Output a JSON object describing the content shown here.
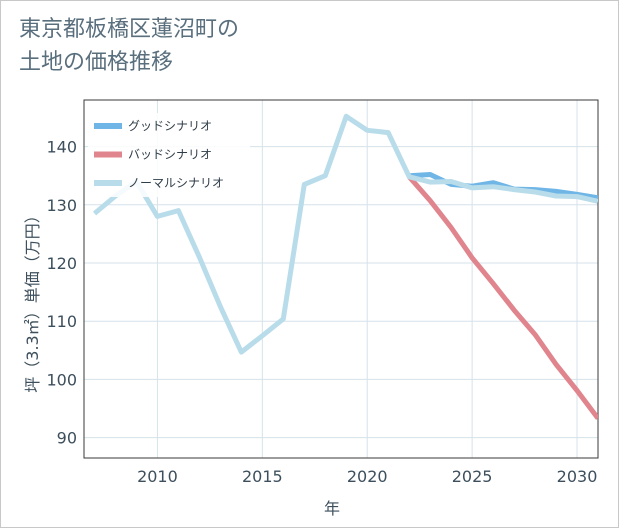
{
  "title": "東京都板橋区蓮沼町の\n土地の価格推移",
  "chart_data": {
    "type": "line",
    "title": "東京都板橋区蓮沼町の土地の価格推移",
    "xlabel": "年",
    "ylabel": "坪（3.3㎡）単価（万円）",
    "xlim": [
      2006.5,
      2031
    ],
    "ylim": [
      86.5,
      148
    ],
    "x_ticks": [
      2010,
      2015,
      2020,
      2025,
      2030
    ],
    "y_ticks": [
      90,
      100,
      110,
      120,
      130,
      140
    ],
    "grid": true,
    "legend_position": "top-left",
    "series": [
      {
        "name": "グッドシナリオ",
        "color": "#6fb6e6",
        "points": [
          [
            2022,
            135
          ],
          [
            2023,
            135.2
          ],
          [
            2024,
            133.5
          ],
          [
            2025,
            133.2
          ],
          [
            2026,
            133.8
          ],
          [
            2027,
            132.7
          ],
          [
            2028,
            132.6
          ],
          [
            2029,
            132.3
          ],
          [
            2030,
            131.8
          ],
          [
            2031,
            131.2
          ]
        ]
      },
      {
        "name": "バッドシナリオ",
        "color": "#e0848d",
        "points": [
          [
            2022,
            134.8
          ],
          [
            2023,
            130.7
          ],
          [
            2024,
            126.1
          ],
          [
            2025,
            120.9
          ],
          [
            2026,
            116.5
          ],
          [
            2027,
            111.9
          ],
          [
            2028,
            107.7
          ],
          [
            2029,
            102.6
          ],
          [
            2030,
            98.1
          ],
          [
            2031,
            93.3
          ]
        ]
      },
      {
        "name": "ノーマルシナリオ",
        "color": "#b9dcea",
        "points": [
          [
            2007,
            128.5
          ],
          [
            2008,
            131.5
          ],
          [
            2009,
            134
          ],
          [
            2010,
            128
          ],
          [
            2011,
            129
          ],
          [
            2012,
            121
          ],
          [
            2013,
            112.5
          ],
          [
            2014,
            104.7
          ],
          [
            2015,
            107.5
          ],
          [
            2016,
            110.4
          ],
          [
            2017,
            133.5
          ],
          [
            2018,
            135
          ],
          [
            2019,
            145.2
          ],
          [
            2020,
            142.8
          ],
          [
            2021,
            142.4
          ],
          [
            2022,
            134.8
          ],
          [
            2023,
            133.9
          ],
          [
            2024,
            134.0
          ],
          [
            2025,
            132.9
          ],
          [
            2026,
            133.1
          ],
          [
            2027,
            132.6
          ],
          [
            2028,
            132.2
          ],
          [
            2029,
            131.5
          ],
          [
            2030,
            131.4
          ],
          [
            2031,
            130.6
          ]
        ]
      }
    ]
  }
}
